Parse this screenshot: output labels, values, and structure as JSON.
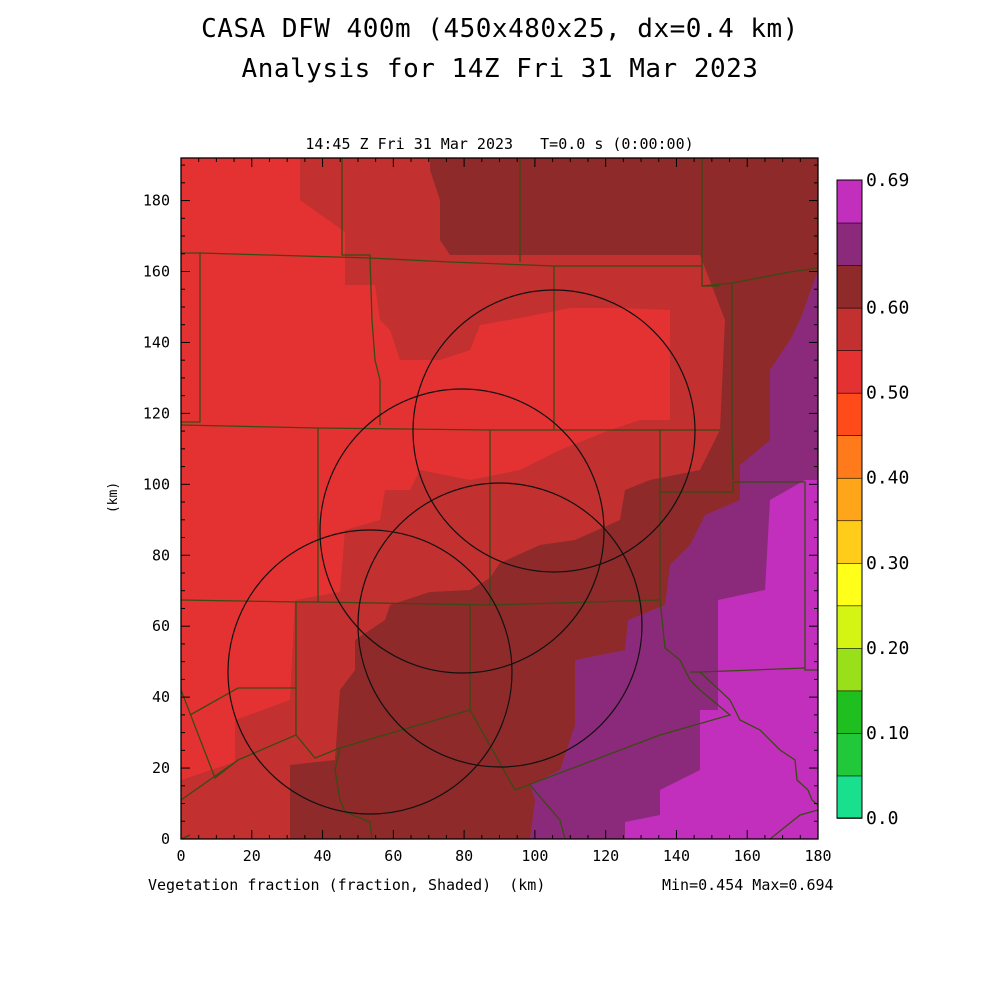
{
  "title_line1": "CASA DFW 400m (450x480x25, dx=0.4 km)",
  "title_line2": "Analysis for 14Z Fri 31 Mar 2023",
  "subtitle": "14:45 Z Fri 31 Mar 2023   T=0.0 s (0:00:00)",
  "y_axis_label": "(km)",
  "footer_left": "Vegetation fraction (fraction, Shaded)  (km)",
  "footer_right": "Min=0.454 Max=0.694",
  "x_ticks": [
    "0",
    "20",
    "40",
    "60",
    "80",
    "100",
    "120",
    "140",
    "160",
    "180"
  ],
  "y_ticks": [
    "0",
    "20",
    "40",
    "60",
    "80",
    "100",
    "120",
    "140",
    "160",
    "180"
  ],
  "colorbar": {
    "colors": [
      "#18e08c",
      "#20c83a",
      "#1fbf1f",
      "#99e01a",
      "#d4f514",
      "#ffff1a",
      "#ffcc1a",
      "#ffa51a",
      "#ff7a1a",
      "#ff4a1a",
      "#e43232",
      "#c23030",
      "#8e2a2a",
      "#8b2a7a",
      "#c22fbc"
    ],
    "labels": [
      "0.0",
      "0.10",
      "0.20",
      "0.30",
      "0.40",
      "0.50",
      "0.60",
      "0.69"
    ]
  },
  "field_colors": {
    "band_045_050": "#e43232",
    "band_050_055": "#c23030",
    "band_055_060": "#8e2a2a",
    "band_060_065": "#8b2a7a",
    "band_065_069": "#c22fbc"
  }
}
